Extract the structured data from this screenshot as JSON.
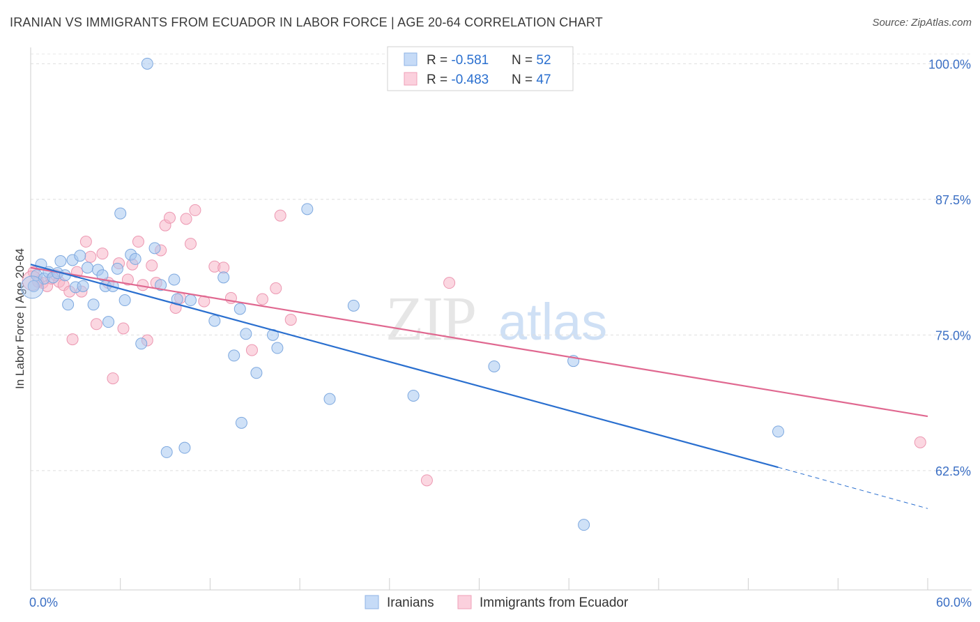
{
  "header": {
    "title": "IRANIAN VS IMMIGRANTS FROM ECUADOR IN LABOR FORCE | AGE 20-64 CORRELATION CHART",
    "source": "Source: ZipAtlas.com"
  },
  "watermark": {
    "zip": "ZIP",
    "atlas": "atlas"
  },
  "legend_stats": {
    "iranians": {
      "r_label": "R = ",
      "r_value": "-0.581",
      "n_label": "N = ",
      "n_value": "52"
    },
    "ecuador": {
      "r_label": "R = ",
      "r_value": "-0.483",
      "n_label": "N = ",
      "n_value": "47"
    }
  },
  "chart_data": {
    "type": "scatter",
    "title": "IRANIAN VS IMMIGRANTS FROM ECUADOR IN LABOR FORCE | AGE 20-64 CORRELATION CHART",
    "xlabel": "",
    "ylabel": "In Labor Force | Age 20-64",
    "xlim": [
      0,
      60
    ],
    "ylim": [
      51.5,
      101.5
    ],
    "x_tick_labels": [
      "0.0%",
      "60.0%"
    ],
    "y_ticks": [
      62.5,
      75.0,
      87.5,
      100.0
    ],
    "y_tick_labels": [
      "62.5%",
      "75.0%",
      "87.5%",
      "100.0%"
    ],
    "grid": true,
    "legend_position": "bottom-center",
    "colors": {
      "iranians": "#a8c8f0",
      "iranians_line": "#2a6fcf",
      "ecuador": "#f7b6c8",
      "ecuador_line": "#e06890",
      "tick_label": "#3b6fc4"
    },
    "series": [
      {
        "name": "Iranians",
        "trend": {
          "x": [
            0,
            50
          ],
          "y": [
            81.5,
            62.8
          ],
          "dashed_to_x": 60,
          "dashed_end_y": 59.0
        },
        "points": [
          [
            0.2,
            79.5
          ],
          [
            0.4,
            80.5
          ],
          [
            0.7,
            81.5
          ],
          [
            0.9,
            80.2
          ],
          [
            1.2,
            80.8
          ],
          [
            1.5,
            80.3
          ],
          [
            1.8,
            80.7
          ],
          [
            2.0,
            81.8
          ],
          [
            2.3,
            80.5
          ],
          [
            2.5,
            77.8
          ],
          [
            2.8,
            81.9
          ],
          [
            3.0,
            79.4
          ],
          [
            3.3,
            82.3
          ],
          [
            3.5,
            79.5
          ],
          [
            3.8,
            81.2
          ],
          [
            4.2,
            77.8
          ],
          [
            4.5,
            81.0
          ],
          [
            4.8,
            80.5
          ],
          [
            5.0,
            79.5
          ],
          [
            5.2,
            76.2
          ],
          [
            5.5,
            79.5
          ],
          [
            5.8,
            81.1
          ],
          [
            6.0,
            86.2
          ],
          [
            6.3,
            78.2
          ],
          [
            6.7,
            82.4
          ],
          [
            7.0,
            82.0
          ],
          [
            7.4,
            74.2
          ],
          [
            7.8,
            100.0
          ],
          [
            8.3,
            83.0
          ],
          [
            8.7,
            79.6
          ],
          [
            9.1,
            64.2
          ],
          [
            9.6,
            80.1
          ],
          [
            9.8,
            78.3
          ],
          [
            10.3,
            64.6
          ],
          [
            10.7,
            78.2
          ],
          [
            12.3,
            76.3
          ],
          [
            12.9,
            80.3
          ],
          [
            13.6,
            73.1
          ],
          [
            14.0,
            77.4
          ],
          [
            14.4,
            75.1
          ],
          [
            15.1,
            71.5
          ],
          [
            16.2,
            75.0
          ],
          [
            16.5,
            73.8
          ],
          [
            18.5,
            86.6
          ],
          [
            20.0,
            69.1
          ],
          [
            21.6,
            77.7
          ],
          [
            25.6,
            69.4
          ],
          [
            31.0,
            72.1
          ],
          [
            36.3,
            72.6
          ],
          [
            37.0,
            57.5
          ],
          [
            50.0,
            66.1
          ],
          [
            14.1,
            66.9
          ]
        ]
      },
      {
        "name": "Immigrants from Ecuador",
        "trend": {
          "x": [
            0,
            60
          ],
          "y": [
            81.2,
            67.5
          ]
        },
        "points": [
          [
            0.2,
            80.8
          ],
          [
            0.5,
            79.9
          ],
          [
            0.8,
            79.8
          ],
          [
            1.1,
            79.5
          ],
          [
            1.4,
            80.2
          ],
          [
            1.7,
            80.5
          ],
          [
            1.9,
            79.9
          ],
          [
            2.2,
            79.6
          ],
          [
            2.6,
            79.0
          ],
          [
            2.8,
            74.6
          ],
          [
            3.1,
            80.8
          ],
          [
            3.4,
            79.0
          ],
          [
            3.7,
            83.6
          ],
          [
            4.0,
            82.2
          ],
          [
            4.4,
            76.0
          ],
          [
            4.8,
            82.5
          ],
          [
            5.2,
            79.8
          ],
          [
            5.5,
            71.0
          ],
          [
            5.9,
            81.6
          ],
          [
            6.2,
            75.6
          ],
          [
            6.5,
            80.1
          ],
          [
            6.8,
            81.5
          ],
          [
            7.2,
            83.6
          ],
          [
            7.5,
            79.6
          ],
          [
            7.8,
            74.5
          ],
          [
            8.1,
            81.4
          ],
          [
            8.4,
            79.8
          ],
          [
            8.7,
            82.8
          ],
          [
            9.0,
            85.1
          ],
          [
            9.3,
            85.8
          ],
          [
            9.7,
            77.5
          ],
          [
            10.0,
            78.4
          ],
          [
            10.4,
            85.7
          ],
          [
            10.7,
            83.4
          ],
          [
            11.0,
            86.5
          ],
          [
            11.6,
            78.1
          ],
          [
            12.3,
            81.3
          ],
          [
            12.9,
            81.2
          ],
          [
            13.4,
            78.4
          ],
          [
            14.8,
            73.6
          ],
          [
            16.4,
            79.3
          ],
          [
            16.7,
            86.0
          ],
          [
            17.4,
            76.4
          ],
          [
            26.5,
            61.6
          ],
          [
            28.0,
            79.8
          ],
          [
            59.5,
            65.1
          ],
          [
            15.5,
            78.3
          ]
        ]
      }
    ]
  },
  "bottom_legend": [
    {
      "name": "Iranians"
    },
    {
      "name": "Immigrants from Ecuador"
    }
  ]
}
